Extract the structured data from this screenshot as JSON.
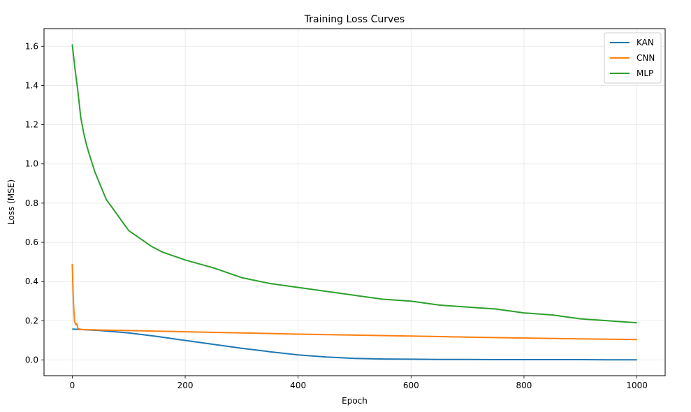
{
  "chart_data": {
    "type": "line",
    "title": "Training Loss Curves",
    "xlabel": "Epoch",
    "ylabel": "Loss (MSE)",
    "xlim": [
      -50,
      1050
    ],
    "ylim": [
      -0.08,
      1.69
    ],
    "xticks": [
      0,
      200,
      400,
      600,
      800,
      1000
    ],
    "yticks": [
      0.0,
      0.2,
      0.4,
      0.6,
      0.8,
      1.0,
      1.2,
      1.4,
      1.6
    ],
    "xtick_labels": [
      "0",
      "200",
      "400",
      "600",
      "800",
      "1000"
    ],
    "ytick_labels": [
      "0.0",
      "0.2",
      "0.4",
      "0.6",
      "0.8",
      "1.0",
      "1.2",
      "1.4",
      "1.6"
    ],
    "grid": true,
    "legend_position": "top-right",
    "series": [
      {
        "name": "KAN",
        "color": "#1f77b4",
        "x": [
          0,
          50,
          100,
          150,
          200,
          250,
          300,
          350,
          400,
          450,
          500,
          550,
          600,
          650,
          700,
          750,
          800,
          850,
          900,
          950,
          1000
        ],
        "y": [
          0.158,
          0.15,
          0.138,
          0.12,
          0.1,
          0.08,
          0.06,
          0.042,
          0.026,
          0.015,
          0.008,
          0.005,
          0.004,
          0.003,
          0.003,
          0.002,
          0.002,
          0.002,
          0.002,
          0.001,
          0.001
        ]
      },
      {
        "name": "CNN",
        "color": "#ff7f0e",
        "x": [
          0,
          2,
          4,
          6,
          8,
          10,
          15,
          20,
          50,
          100,
          200,
          300,
          400,
          500,
          600,
          700,
          800,
          900,
          1000
        ],
        "y": [
          0.49,
          0.3,
          0.2,
          0.18,
          0.185,
          0.16,
          0.157,
          0.155,
          0.153,
          0.15,
          0.144,
          0.138,
          0.132,
          0.127,
          0.122,
          0.117,
          0.112,
          0.108,
          0.104
        ]
      },
      {
        "name": "MLP",
        "color": "#2ca02c",
        "x": [
          0,
          5,
          10,
          15,
          20,
          25,
          30,
          40,
          50,
          60,
          70,
          80,
          90,
          100,
          120,
          140,
          160,
          180,
          200,
          250,
          300,
          350,
          400,
          450,
          500,
          550,
          600,
          650,
          700,
          750,
          800,
          850,
          900,
          950,
          1000
        ],
        "y": [
          1.61,
          1.48,
          1.37,
          1.24,
          1.16,
          1.1,
          1.05,
          0.96,
          0.89,
          0.82,
          0.78,
          0.74,
          0.7,
          0.66,
          0.62,
          0.58,
          0.55,
          0.53,
          0.51,
          0.47,
          0.42,
          0.39,
          0.37,
          0.35,
          0.33,
          0.31,
          0.3,
          0.28,
          0.27,
          0.26,
          0.24,
          0.23,
          0.21,
          0.2,
          0.19
        ]
      }
    ]
  }
}
